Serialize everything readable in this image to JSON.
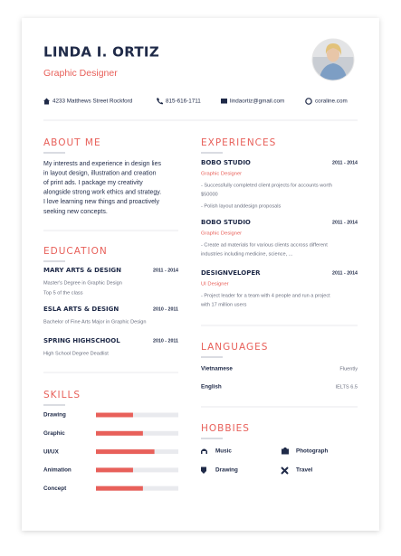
{
  "header": {
    "name": "LINDA I. ORTIZ",
    "title": "Graphic Designer"
  },
  "contact": [
    "4233 Matthews Street Rockford",
    "815-616-1711",
    "lindaortiz@gmail.com",
    "coraline.com"
  ],
  "about": {
    "heading": "ABOUT ME",
    "lines": [
      "My interests and experience in design lies",
      "in layout design, illustration and creation",
      "of print ads. I package my creativity",
      "alongside strong work ethics and strategy.",
      "I love learning new things and proactively",
      "seeking new concepts."
    ]
  },
  "education": {
    "heading": "EDUCATION",
    "entries": [
      {
        "school": "MARY ARTS & DESIGN",
        "dates": "2011 - 2014",
        "details": [
          "Master's Degree in Graphic Design",
          "Top 5 of the class"
        ]
      },
      {
        "school": "ESLA ARTS & DESIGN",
        "dates": "2010 - 2011",
        "details": [
          "Bachelor of Fine Arts Major in Graphic Design"
        ]
      },
      {
        "school": "SPRING HIGHSCHOOL",
        "dates": "2010 - 2011",
        "details": [
          "High School Degree Deadlist"
        ]
      }
    ]
  },
  "skills": {
    "heading": "SKILLS",
    "items": [
      {
        "name": "Drawing",
        "level": 45
      },
      {
        "name": "Graphic",
        "level": 57
      },
      {
        "name": "UI/UX",
        "level": 71
      },
      {
        "name": "Animation",
        "level": 45
      },
      {
        "name": "Concept",
        "level": 57
      }
    ]
  },
  "experiences": {
    "heading": "EXPERIENCES",
    "entries": [
      {
        "company": "BOBO STUDIO",
        "dates": "2011 - 2014",
        "role": "Graphic Designer",
        "bullets": [
          [
            "- Successfully completed client projects for accounts worth",
            "$50000"
          ],
          [
            "- Polish layout anddesign proposals"
          ]
        ]
      },
      {
        "company": "BOBO STUDIO",
        "dates": "2011 - 2014",
        "role": "Graphic Designer",
        "bullets": [
          [
            "- Create ad materials for various clients accross different",
            "industries including medicine, science, ..."
          ]
        ]
      },
      {
        "company": "DESIGNVELOPER",
        "dates": "2011 - 2014",
        "role": "UI Designer",
        "bullets": [
          [
            "- Project leader for a team with 4 people and run a project",
            "with 17 million users"
          ]
        ]
      }
    ]
  },
  "languages": {
    "heading": "LANGUAGES",
    "items": [
      {
        "name": "Vietnamese",
        "level": "Fluently"
      },
      {
        "name": "English",
        "level": "IELTS 6.5"
      }
    ]
  },
  "hobbies": {
    "heading": "HOBBIES",
    "items": [
      "Music",
      "Photograph",
      "Drawing",
      "Travel"
    ]
  }
}
